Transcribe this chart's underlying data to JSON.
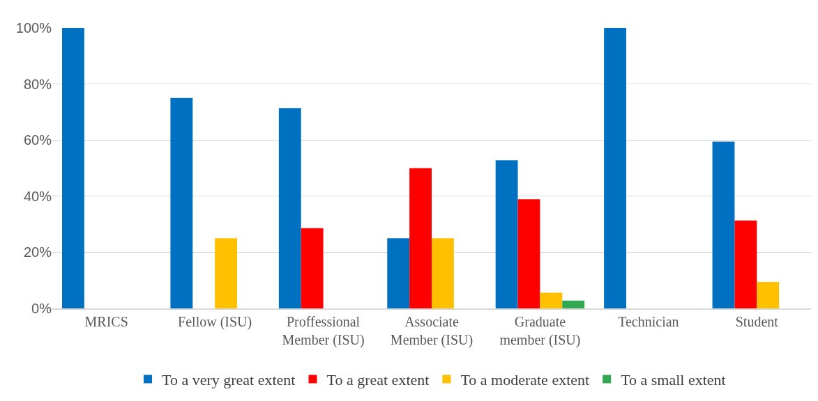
{
  "chart_data": {
    "type": "bar",
    "categories": [
      "MRICS",
      "Fellow (ISU)",
      "Proffessional\nMember (ISU)",
      "Associate\nMember (ISU)",
      "Graduate\nmember (ISU)",
      "Technician",
      "Student"
    ],
    "series": [
      {
        "name": "To a very great extent",
        "color": "#0070c0",
        "values": [
          100,
          75,
          71.4,
          25,
          52.8,
          100,
          59.4
        ]
      },
      {
        "name": "To a great extent",
        "color": "#ff0000",
        "values": [
          0,
          0,
          28.6,
          50,
          38.9,
          0,
          31.3
        ]
      },
      {
        "name": "To a moderate extent",
        "color": "#ffc000",
        "values": [
          0,
          25,
          0,
          25,
          5.6,
          0,
          9.4
        ]
      },
      {
        "name": "To a small extent",
        "color": "#33a852",
        "values": [
          0,
          0,
          0,
          0,
          2.8,
          0,
          0
        ]
      }
    ],
    "ylim": [
      0,
      100
    ],
    "yticks": [
      {
        "value": 0,
        "label": "0%"
      },
      {
        "value": 20,
        "label": "20%"
      },
      {
        "value": 40,
        "label": "40%"
      },
      {
        "value": 60,
        "label": "60%"
      },
      {
        "value": 80,
        "label": "80%"
      },
      {
        "value": 100,
        "label": "100%"
      }
    ],
    "grid": "y",
    "legend": "bottom"
  }
}
